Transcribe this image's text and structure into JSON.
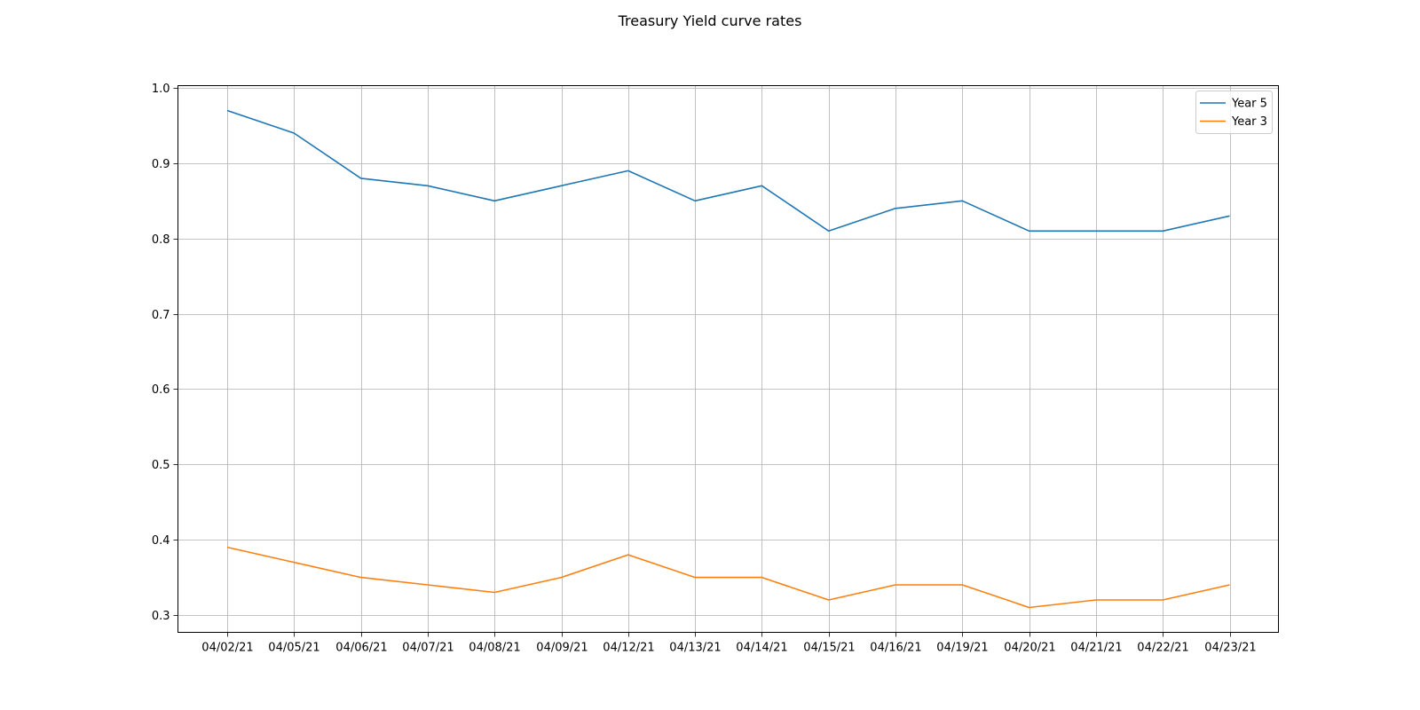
{
  "chart_data": {
    "type": "line",
    "title": "Treasury Yield curve rates",
    "xlabel": "",
    "ylabel": "",
    "grid": true,
    "legend_position": "top-right",
    "ylim": [
      0.277,
      1.003
    ],
    "y_ticks": [
      "0.3",
      "0.4",
      "0.5",
      "0.6",
      "0.7",
      "0.8",
      "0.9",
      "1.0"
    ],
    "categories": [
      "04/02/21",
      "04/05/21",
      "04/06/21",
      "04/07/21",
      "04/08/21",
      "04/09/21",
      "04/12/21",
      "04/13/21",
      "04/14/21",
      "04/15/21",
      "04/16/21",
      "04/19/21",
      "04/20/21",
      "04/21/21",
      "04/22/21",
      "04/23/21"
    ],
    "series": [
      {
        "name": "Year 5",
        "color": "#1f77b4",
        "values": [
          0.97,
          0.94,
          0.88,
          0.87,
          0.85,
          0.87,
          0.89,
          0.85,
          0.87,
          0.81,
          0.84,
          0.85,
          0.81,
          0.81,
          0.81,
          0.83
        ]
      },
      {
        "name": "Year 3",
        "color": "#ff7f0e",
        "values": [
          0.39,
          0.37,
          0.35,
          0.34,
          0.33,
          0.35,
          0.38,
          0.35,
          0.35,
          0.32,
          0.34,
          0.34,
          0.31,
          0.32,
          0.32,
          0.34
        ]
      }
    ]
  }
}
